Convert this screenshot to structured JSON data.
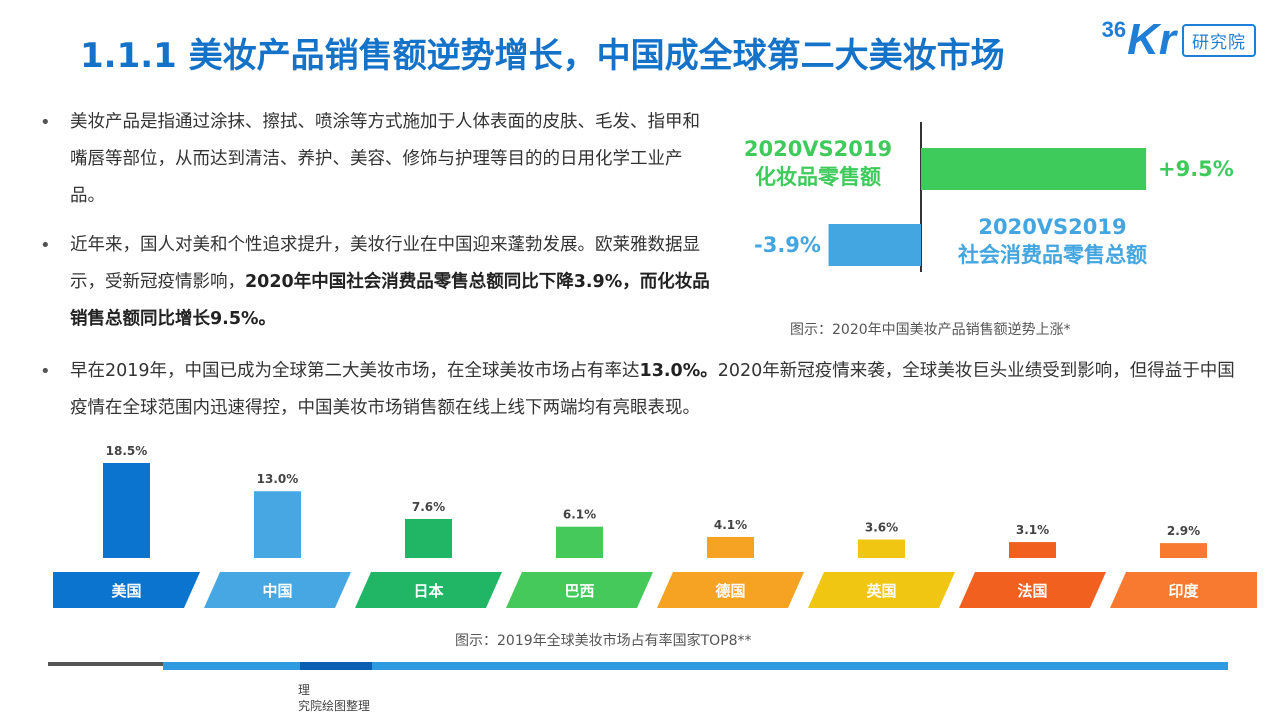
{
  "title": "1.1.1 美妆产品销售额逆势增长，中国成全球第二大美妆市场",
  "logo": {
    "prefix": "36",
    "main": "Kr",
    "sub": "研究院"
  },
  "bullets": {
    "b1": "美妆产品是指通过涂抹、擦拭、喷涂等方式施加于人体表面的皮肤、毛发、指甲和嘴唇等部位，从而达到清洁、养护、美容、修饰与护理等目的的日用化学工业产品。",
    "b2_plain": "近年来，国人对美和个性追求提升，美妆行业在中国迎来蓬勃发展。欧莱雅数据显示，受新冠疫情影响，",
    "b2_bold": "2020年中国社会消费品零售总额同比下降3.9%，而化妆品销售总额同比增长9.5%。",
    "b3_a": "早在2019年，中国已成为全球第二大美妆市场，在全球美妆市场占有率达",
    "b3_bold": "13.0%。",
    "b3_b": "2020年新冠疫情来袭，全球美妆巨头业绩受到影响，但得益于中国疫情在全球范围内迅速得控，中国美妆市场销售额在线上线下两端均有亮眼表现。"
  },
  "bullet_symbol": "•",
  "comparison": {
    "cosmetics": {
      "line1": "2020VS2019",
      "line2": "化妆品零售额",
      "value_label": "+9.5%",
      "value": 9.5,
      "color": "#3fca5c"
    },
    "retail": {
      "line1": "2020VS2019",
      "line2": "社会消费品零售总额",
      "value_label": "-3.9%",
      "value": -3.9,
      "color": "#43a6e0"
    },
    "caption": "图示：2020年中国美妆产品销售额逆势上涨*"
  },
  "chart_data": {
    "type": "bar",
    "categories": [
      "美国",
      "中国",
      "日本",
      "巴西",
      "德国",
      "英国",
      "法国",
      "印度"
    ],
    "values": [
      18.5,
      13.0,
      7.6,
      6.1,
      4.1,
      3.6,
      3.1,
      2.9
    ],
    "value_labels": [
      "18.5%",
      "13.0%",
      "7.6%",
      "6.1%",
      "4.1%",
      "3.6%",
      "3.1%",
      "2.9%"
    ],
    "colors": [
      "#0b74cf",
      "#46a7e2",
      "#21b665",
      "#45c95b",
      "#f6a323",
      "#f1c613",
      "#f2601f",
      "#f87a30"
    ],
    "title": "",
    "xlabel": "",
    "ylabel": "",
    "ylim": [
      0,
      20
    ],
    "caption": "图示：2019年全球美妆市场占有率国家TOP8**"
  },
  "source": {
    "line1": "理",
    "line2": "究院绘图整理"
  },
  "footer_colors": [
    "#555555",
    "#1e88e5",
    "#0b5fb3",
    "#2e9be0"
  ]
}
